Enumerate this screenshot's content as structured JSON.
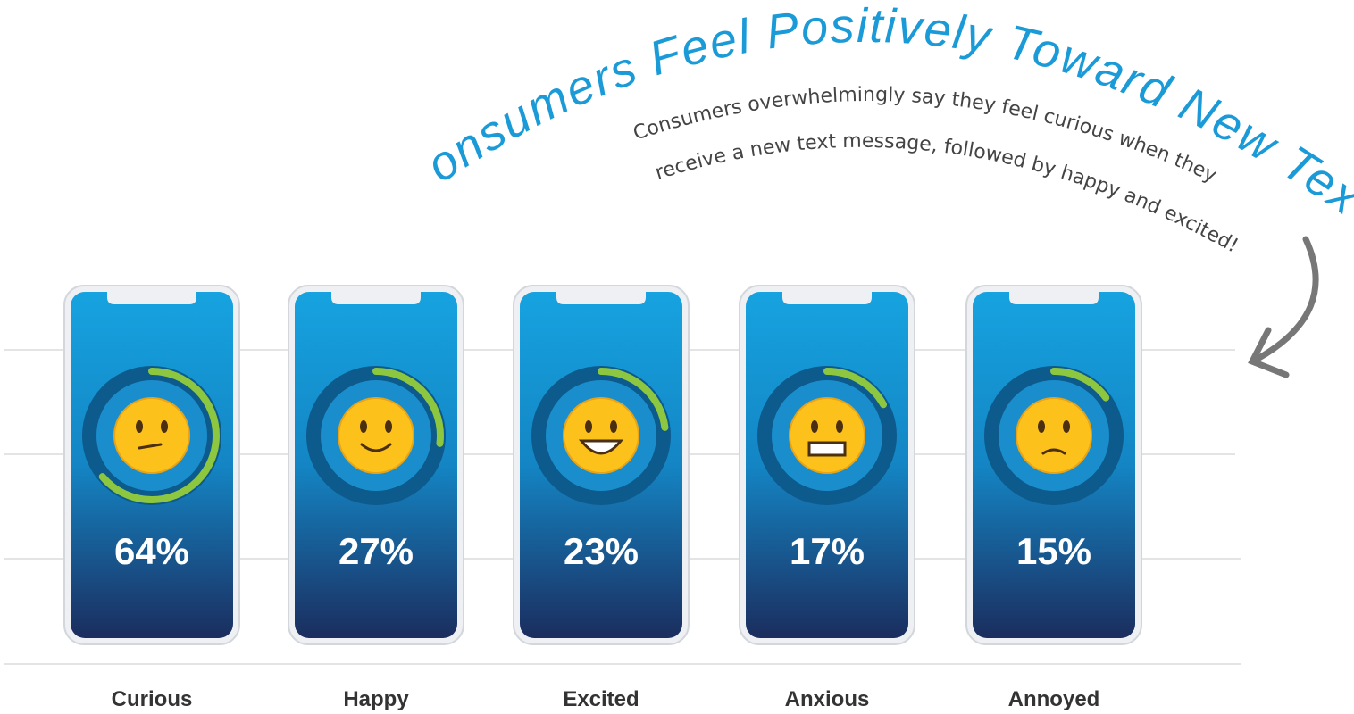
{
  "chart_data": {
    "type": "ring",
    "title": "Consumers Feel Positively Toward New Texts",
    "subtitle": [
      "Consumers overwhelmingly say they feel curious when they",
      "receive a new text message, followed by happy and excited!"
    ],
    "categories": [
      "Curious",
      "Happy",
      "Excited",
      "Anxious",
      "Annoyed"
    ],
    "values": [
      64,
      27,
      23,
      17,
      15
    ],
    "value_labels": [
      "64%",
      "27%",
      "23%",
      "17%",
      "15%"
    ],
    "color": "#8dc63f"
  }
}
